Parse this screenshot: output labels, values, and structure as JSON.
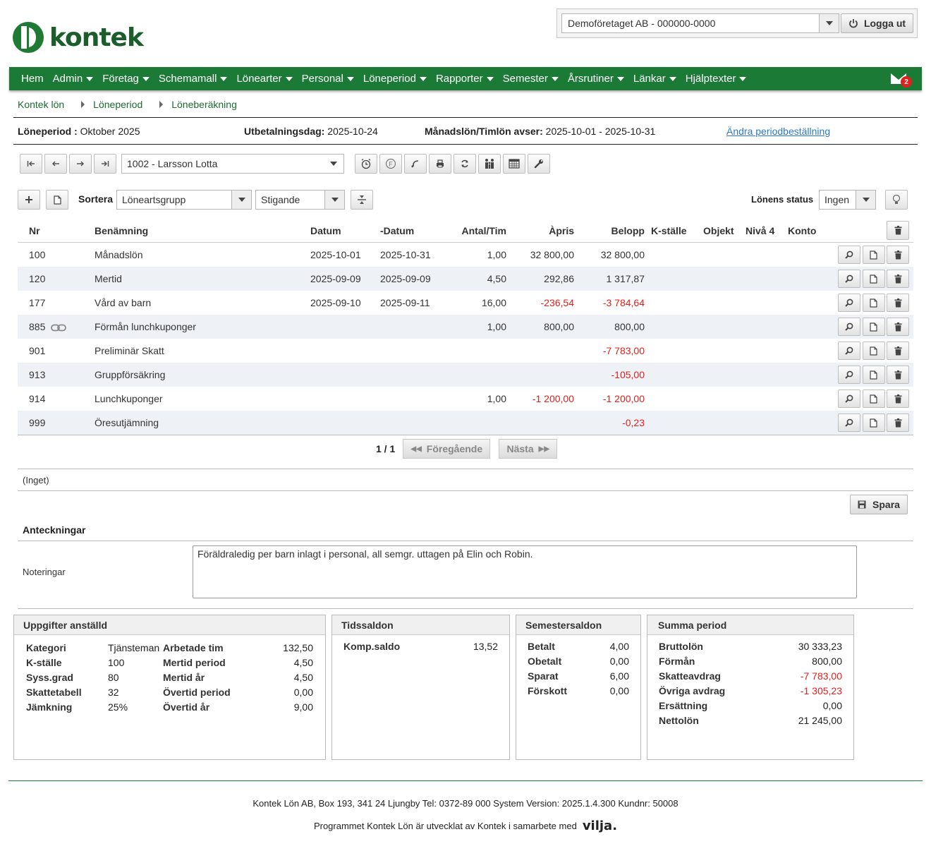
{
  "logo": {
    "text": "kontek"
  },
  "company": {
    "selected": "Demoföretaget AB - 000000-0000",
    "logout_label": "Logga ut"
  },
  "nav": {
    "items": [
      "Hem",
      "Admin",
      "Företag",
      "Schemamall",
      "Lönearter",
      "Personal",
      "Löneperiod",
      "Rapporter",
      "Semester",
      "Årsrutiner",
      "Länkar",
      "Hjälptexter"
    ],
    "mail_count": "2"
  },
  "breadcrumb": [
    "Kontek lön",
    "Löneperiod",
    "Löneberäkning"
  ],
  "period": {
    "period_label": "Löneperiod :",
    "period_value": "Oktober 2025",
    "payday_label": "Utbetalningsdag:",
    "payday_value": "2025-10-24",
    "covers_label": "Månadslön/Timlön avser:",
    "covers_value": "2025-10-01 - 2025-10-31",
    "change_link": "Ändra periodbeställning"
  },
  "employee": {
    "selected": "1002 - Larsson Lotta"
  },
  "sort": {
    "label": "Sortera",
    "field": "Löneartsgrupp",
    "order": "Stigande"
  },
  "status": {
    "label": "Lönens status",
    "value": "Ingen"
  },
  "table": {
    "headers": [
      "Nr",
      "Benämning",
      "Datum",
      "-Datum",
      "Antal/Tim",
      "Àpris",
      "Belopp",
      "K-ställe",
      "Objekt",
      "Nivå 4",
      "Konto"
    ],
    "rows": [
      {
        "nr": "100",
        "name": "Månadslön",
        "from": "2025-10-01",
        "to": "2025-10-31",
        "qty": "1,00",
        "price": "32 800,00",
        "amount": "32 800,00",
        "price_neg": false,
        "amount_neg": false,
        "link": false
      },
      {
        "nr": "120",
        "name": "Mertid",
        "from": "2025-09-09",
        "to": "2025-09-09",
        "qty": "4,50",
        "price": "292,86",
        "amount": "1 317,87",
        "price_neg": false,
        "amount_neg": false,
        "link": false
      },
      {
        "nr": "177",
        "name": "Vård av barn",
        "from": "2025-09-10",
        "to": "2025-09-11",
        "qty": "16,00",
        "price": "-236,54",
        "amount": "-3 784,64",
        "price_neg": true,
        "amount_neg": true,
        "link": false
      },
      {
        "nr": "885",
        "name": "Förmån lunchkuponger",
        "from": "",
        "to": "",
        "qty": "1,00",
        "price": "800,00",
        "amount": "800,00",
        "price_neg": false,
        "amount_neg": false,
        "link": true
      },
      {
        "nr": "901",
        "name": "Preliminär Skatt",
        "from": "",
        "to": "",
        "qty": "",
        "price": "",
        "amount": "-7 783,00",
        "price_neg": false,
        "amount_neg": true,
        "link": false
      },
      {
        "nr": "913",
        "name": "Gruppförsäkring",
        "from": "",
        "to": "",
        "qty": "",
        "price": "",
        "amount": "-105,00",
        "price_neg": false,
        "amount_neg": true,
        "link": false
      },
      {
        "nr": "914",
        "name": "Lunchkuponger",
        "from": "",
        "to": "",
        "qty": "1,00",
        "price": "-1 200,00",
        "amount": "-1 200,00",
        "price_neg": true,
        "amount_neg": true,
        "link": false
      },
      {
        "nr": "999",
        "name": "Öresutjämning",
        "from": "",
        "to": "",
        "qty": "",
        "price": "",
        "amount": "-0,23",
        "price_neg": false,
        "amount_neg": true,
        "link": false
      }
    ]
  },
  "pager": {
    "page": "1 / 1",
    "prev": "Föregående",
    "next": "Nästa"
  },
  "inget": "(Inget)",
  "save_label": "Spara",
  "notes": {
    "heading": "Anteckningar",
    "label": "Noteringar",
    "text": "Föräldraledig per barn inlagt i personal, all semgr. uttagen på Elin och Robin."
  },
  "employee_info": {
    "title": "Uppgifter anställd",
    "left": [
      [
        "Kategori",
        "Tjänsteman"
      ],
      [
        "K-ställe",
        "100"
      ],
      [
        "Syss.grad",
        "80"
      ],
      [
        "Skattetabell",
        "32"
      ],
      [
        "Jämkning",
        "25%"
      ]
    ],
    "right": [
      [
        "Arbetade tim",
        "132,50"
      ],
      [
        "Mertid period",
        "4,50"
      ],
      [
        "Mertid år",
        "4,50"
      ],
      [
        "Övertid period",
        "0,00"
      ],
      [
        "Övertid år",
        "9,00"
      ]
    ]
  },
  "time_balance": {
    "title": "Tidssaldon",
    "rows": [
      [
        "Komp.saldo",
        "13,52"
      ]
    ]
  },
  "vacation_balance": {
    "title": "Semestersaldon",
    "rows": [
      [
        "Betalt",
        "4,00"
      ],
      [
        "Obetalt",
        "0,00"
      ],
      [
        "Sparat",
        "6,00"
      ],
      [
        "Förskott",
        "0,00"
      ]
    ]
  },
  "period_sum": {
    "title": "Summa period",
    "rows": [
      [
        "Bruttolön",
        "30 333,23",
        false
      ],
      [
        "Förmån",
        "800,00",
        false
      ],
      [
        "Skatteavdrag",
        "-7 783,00",
        true
      ],
      [
        "Övriga avdrag",
        "-1 305,23",
        true
      ],
      [
        "Ersättning",
        "0,00",
        false
      ],
      [
        "Nettolön",
        "21 245,00",
        false
      ]
    ]
  },
  "footer": {
    "line1": "Kontek Lön AB, Box 193, 341 24 Ljungby Tel: 0372-89 000 System Version: 2025.1.4.300 Kundnr: 50008",
    "line2": "Programmet Kontek Lön är utvecklat av Kontek i samarbete med",
    "partner": "vilja."
  },
  "colors": {
    "brand_green": "#1a7a36",
    "negative": "#e0201c",
    "link": "#2b7ac9"
  }
}
